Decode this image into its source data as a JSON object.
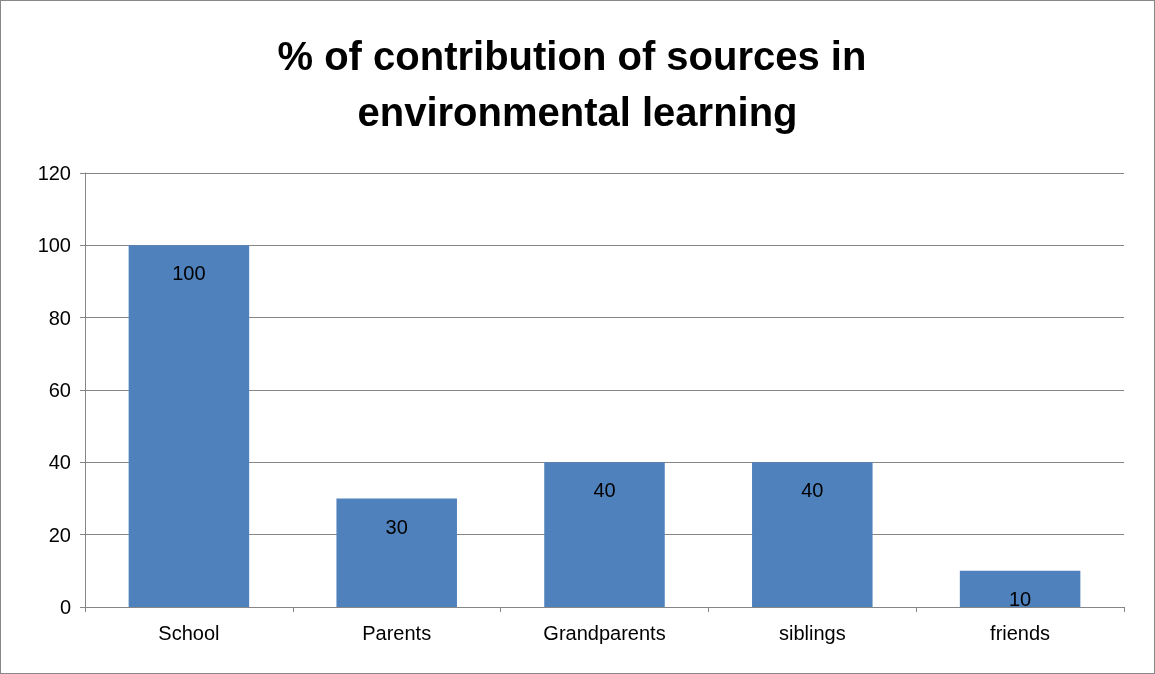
{
  "chart_data": {
    "type": "bar",
    "title": "% of contribution of sources in environmental learning",
    "categories": [
      "School",
      "Parents",
      "Grandparents",
      "siblings",
      "friends"
    ],
    "values": [
      100,
      30,
      40,
      40,
      10
    ],
    "color": "#4f81bd",
    "ylim": [
      0,
      120
    ],
    "yticks": [
      0,
      20,
      40,
      60,
      80,
      100,
      120
    ],
    "grid": "y",
    "data_labels": true
  }
}
